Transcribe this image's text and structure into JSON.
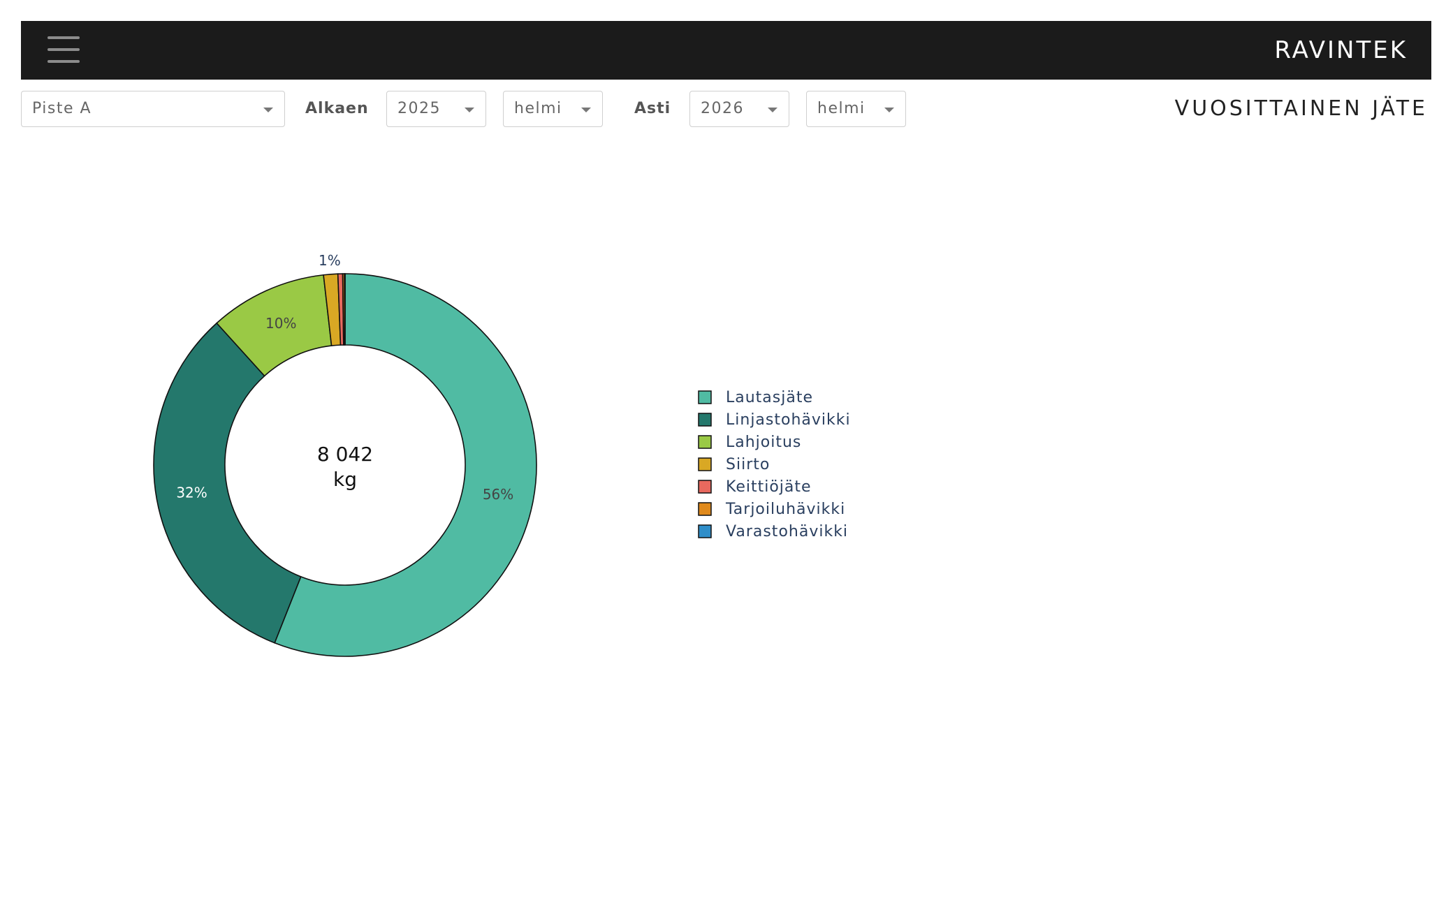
{
  "header": {
    "brand": "RAVINTEK",
    "menu_icon": "hamburger-menu-icon"
  },
  "filters": {
    "location": "Piste A",
    "from_label": "Alkaen",
    "from_year": "2025",
    "from_month": "helmi",
    "to_label": "Asti",
    "to_year": "2026",
    "to_month": "helmi"
  },
  "page_title": "VUOSITTAINEN JÄTE",
  "chart_data": {
    "type": "pie",
    "hole": true,
    "center_text": [
      "8 042",
      "kg"
    ],
    "legend_position": "right",
    "slices": [
      {
        "name": "Lautasjäte",
        "percent": 56.0,
        "label": "56%",
        "color": "#50bba3"
      },
      {
        "name": "Linjastohävikki",
        "percent": 32.3,
        "label": "32%",
        "color": "#24786c"
      },
      {
        "name": "Lahjoitus",
        "percent": 9.9,
        "label": "10%",
        "color": "#9ac945"
      },
      {
        "name": "Siirto",
        "percent": 1.2,
        "label": "1%",
        "color": "#d9a824"
      },
      {
        "name": "Keittiöjäte",
        "percent": 0.4,
        "label": "",
        "color": "#e8695e"
      },
      {
        "name": "Tarjoiluhävikki",
        "percent": 0.15,
        "label": "",
        "color": "#e08a1c"
      },
      {
        "name": "Varastohävikki",
        "percent": 0.05,
        "label": "",
        "color": "#2f8ec9"
      }
    ]
  }
}
